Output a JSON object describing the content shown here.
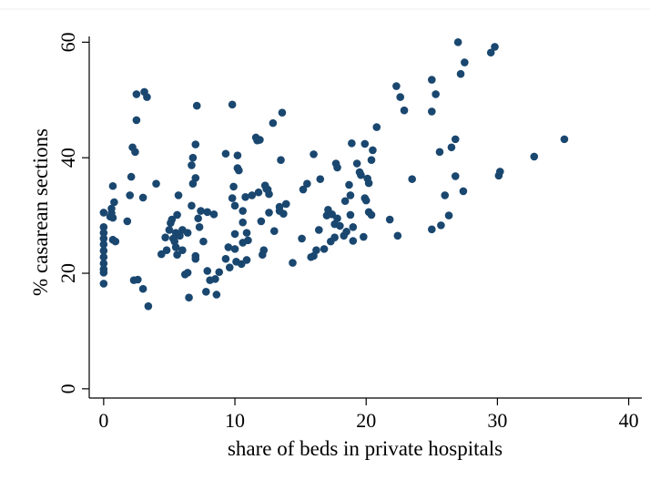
{
  "chart_data": {
    "type": "scatter",
    "xlabel": "share of beds in private hospitals",
    "ylabel": "% casarean sections",
    "color": "#1a476f",
    "xlim": [
      -1.1,
      41
    ],
    "ylim": [
      -1.6,
      61
    ],
    "xticks": [
      0,
      10,
      20,
      30,
      40
    ],
    "yticks": [
      0,
      20,
      40,
      60
    ],
    "x": [
      0,
      0,
      0,
      0,
      0,
      0,
      0,
      0,
      0,
      0,
      0,
      0.6,
      0.7,
      0.6,
      0.7,
      0.9,
      0.7,
      0.8,
      0.5,
      1.8,
      2.0,
      2.1,
      2.2,
      2.4,
      2.3,
      2.6,
      2.5,
      2.5,
      3.0,
      3.0,
      3.1,
      3.3,
      3.4,
      4.0,
      4.4,
      4.7,
      4.8,
      5,
      5.1,
      5.2,
      5.3,
      5.4,
      5.5,
      5.5,
      5.6,
      5.6,
      5.7,
      5.8,
      6.0,
      6.2,
      6.4,
      6.0,
      6.5,
      6.7,
      6.4,
      6.7,
      6.8,
      6.8,
      7.0,
      7.0,
      7.1,
      7.2,
      7.3,
      7.4,
      7.0,
      7.0,
      7.6,
      7.9,
      7.9,
      7.8,
      8.1,
      8.4,
      8.6,
      8.8,
      8.5,
      9.3,
      9.3,
      9.5,
      9.6,
      9.8,
      9.8,
      9.9,
      10,
      10,
      10,
      10.2,
      10.2,
      10.1,
      10.3,
      10.5,
      10.6,
      10.6,
      10.6,
      10.9,
      10.8,
      10.9,
      11.0,
      11.3,
      11.6,
      11.7,
      11.8,
      11.9,
      12.0,
      12.2,
      12.1,
      12.3,
      12.4,
      12.5,
      12.6,
      12.6,
      12.9,
      13.0,
      13.4,
      13.4,
      13.5,
      13.6,
      13.7,
      13.9,
      14.4,
      15.2,
      15.1,
      15.5,
      15.8,
      16.0,
      16.0,
      16.2,
      16.4,
      16.5,
      16.8,
      17,
      17.1,
      17.3,
      17.4,
      17.6,
      17.6,
      17.7,
      17.8,
      17.8,
      18,
      18.3,
      18.4,
      18.5,
      18.7,
      18.8,
      18.8,
      18.9,
      19.0,
      19.0,
      19.3,
      19.5,
      19.6,
      19.8,
      19.9,
      19.9,
      20,
      20.1,
      20.2,
      20.2,
      20.4,
      20.4,
      20.5,
      20.8,
      21.8,
      22.3,
      22.4,
      22.6,
      22.9,
      23.5,
      25.0,
      25.0,
      25.0,
      25.3,
      25.6,
      25.7,
      26.0,
      26.3,
      26.5,
      26.8,
      26.8,
      27.0,
      27.2,
      27.4,
      27.5,
      29.5,
      29.8,
      30.1,
      30.2,
      32.8,
      35.1
    ],
    "values": [
      30.5,
      28,
      27,
      26,
      25,
      23.9,
      22.8,
      21.7,
      20.7,
      20.1,
      18.2,
      30.4,
      29.6,
      31.2,
      25.8,
      25.5,
      35.1,
      32.3,
      29.8,
      29,
      33.5,
      36.7,
      41.8,
      41,
      18.8,
      18.9,
      46.5,
      51,
      33.1,
      17.3,
      51.4,
      50.5,
      14.3,
      35.5,
      23.3,
      26.2,
      24,
      27.5,
      28.7,
      29.3,
      26,
      25.5,
      27,
      24.5,
      23.2,
      30.1,
      33.5,
      26.5,
      24,
      19.8,
      20.1,
      27.5,
      15.8,
      31.7,
      27,
      38.7,
      40,
      35.5,
      36.5,
      42.3,
      49,
      29.5,
      28,
      30.8,
      23,
      22.5,
      25.5,
      30.6,
      20.4,
      16.8,
      18.8,
      30.2,
      16.3,
      20.2,
      19,
      40.7,
      22.5,
      24.5,
      21,
      49.2,
      33,
      35,
      31.7,
      26.8,
      24.2,
      38.2,
      40.4,
      22,
      37.8,
      21.6,
      28.8,
      25.3,
      30.8,
      22.3,
      33.2,
      27,
      25.7,
      33.5,
      43.5,
      43,
      34,
      43.1,
      29,
      24,
      23.2,
      35.2,
      34.6,
      34.5,
      33.7,
      30.5,
      46,
      27.3,
      31.5,
      30.8,
      39.6,
      47.8,
      30.3,
      32,
      21.8,
      34.5,
      26,
      35.5,
      22.8,
      40.6,
      23,
      24,
      27.5,
      36.3,
      24.2,
      30,
      31,
      25.5,
      30.2,
      26.2,
      28.5,
      39,
      38.3,
      29.5,
      28.2,
      26.5,
      32.5,
      27.2,
      35.3,
      33.5,
      30.1,
      42.5,
      28,
      25.6,
      39,
      37.5,
      37,
      26.3,
      33,
      42.4,
      32.6,
      36.4,
      35.6,
      30.6,
      30.1,
      39.6,
      41.3,
      45.3,
      29.3,
      52.4,
      26.5,
      50.5,
      48.2,
      36.3,
      53.5,
      48,
      27.6,
      51,
      41,
      28.3,
      33.5,
      30,
      41.8,
      43.2,
      36.8,
      60,
      54.5,
      34.2,
      56.5,
      58.2,
      59.2,
      36.9,
      37.6,
      40.2,
      43.2
    ]
  }
}
